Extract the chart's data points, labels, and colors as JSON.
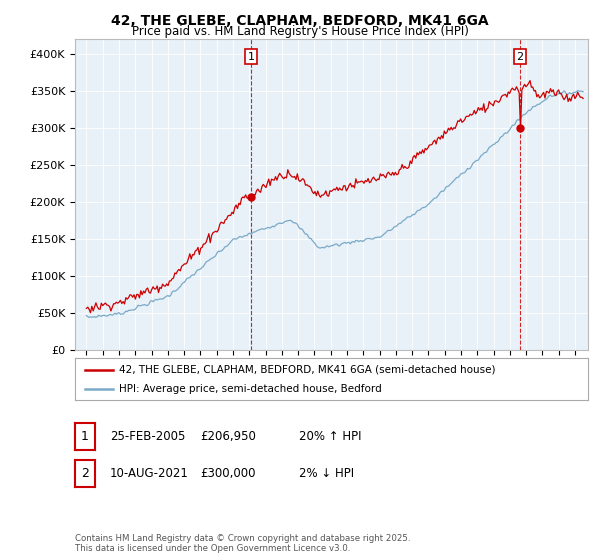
{
  "title": "42, THE GLEBE, CLAPHAM, BEDFORD, MK41 6GA",
  "subtitle": "Price paid vs. HM Land Registry's House Price Index (HPI)",
  "red_label": "42, THE GLEBE, CLAPHAM, BEDFORD, MK41 6GA (semi-detached house)",
  "blue_label": "HPI: Average price, semi-detached house, Bedford",
  "footnote": "Contains HM Land Registry data © Crown copyright and database right 2025.\nThis data is licensed under the Open Government Licence v3.0.",
  "sale1_date": "25-FEB-2005",
  "sale1_price": "£206,950",
  "sale1_hpi": "20% ↑ HPI",
  "sale2_date": "10-AUG-2021",
  "sale2_price": "£300,000",
  "sale2_hpi": "2% ↓ HPI",
  "sale1_year": 2005.12,
  "sale1_val": 206950,
  "sale2_year": 2021.62,
  "sale2_val": 300000,
  "ylim": [
    0,
    420000
  ],
  "yticks": [
    0,
    50000,
    100000,
    150000,
    200000,
    250000,
    300000,
    350000,
    400000
  ],
  "ytick_labels": [
    "£0",
    "£50K",
    "£100K",
    "£150K",
    "£200K",
    "£250K",
    "£300K",
    "£350K",
    "£400K"
  ],
  "red_color": "#cc0000",
  "blue_color": "#7aaac8",
  "vline_color": "#cc0000",
  "chart_bg": "#e8f0f8",
  "background_color": "#ffffff",
  "grid_color": "#ffffff"
}
